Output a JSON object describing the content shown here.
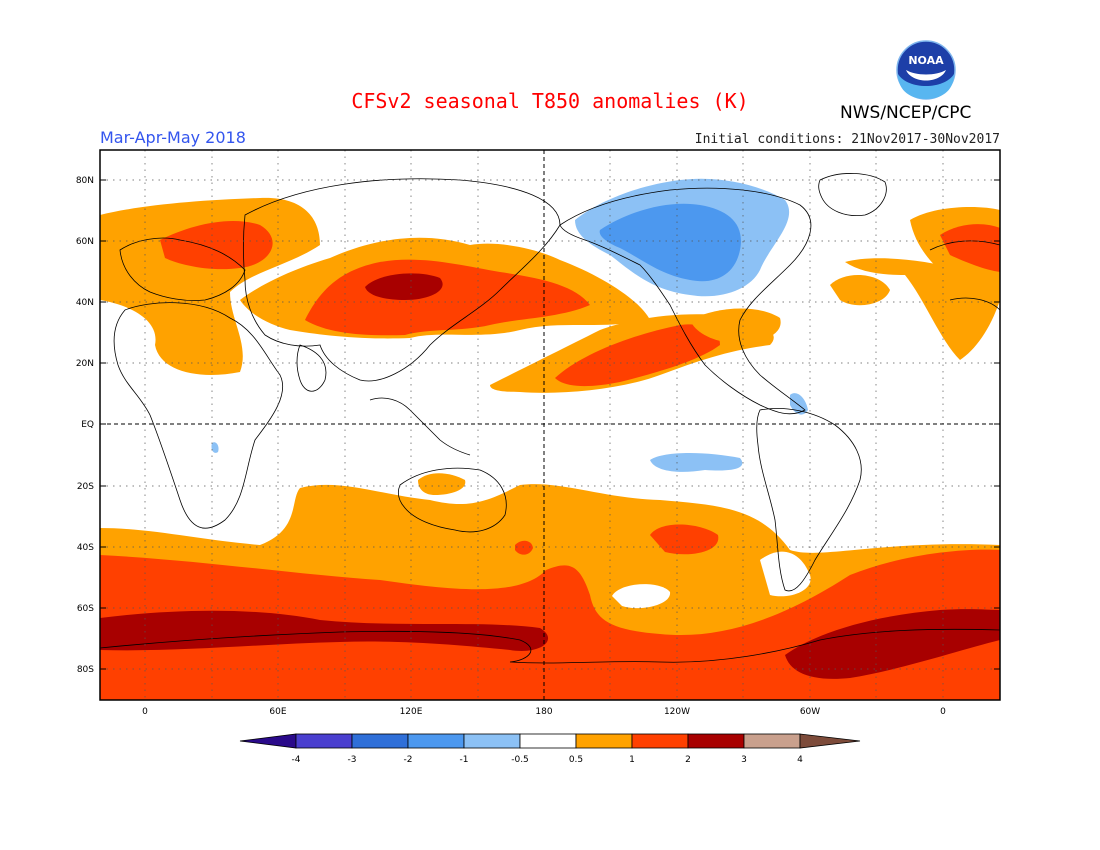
{
  "header": {
    "title": "CFSv2 seasonal T850 anomalies (K)",
    "season": "Mar-Apr-May 2018",
    "initial_conditions": "Initial conditions: 21Nov2017-30Nov2017",
    "agency": "NWS/NCEP/CPC",
    "logo_text": "NOAA"
  },
  "colors": {
    "title": "#ff0000",
    "season": "#3355ee",
    "ocean_neutral": "#ffffff",
    "coast": "#000000"
  },
  "map": {
    "lat_labels": [
      "80N",
      "60N",
      "40N",
      "20N",
      "EQ",
      "20S",
      "40S",
      "60S",
      "80S"
    ],
    "lon_labels": [
      "0",
      "60E",
      "120E",
      "180",
      "120W",
      "60W",
      "0"
    ]
  },
  "colorbar": {
    "ticks": [
      "-4",
      "-3",
      "-2",
      "-1",
      "-0.5",
      "0.5",
      "1",
      "2",
      "3",
      "4"
    ],
    "colors": [
      "#2a0a8a",
      "#4a3fcf",
      "#2f6fd8",
      "#4c98ef",
      "#8cc1f5",
      "#ffffff",
      "#ffa200",
      "#ff4000",
      "#a80000",
      "#c9a08d",
      "#7d4b3a"
    ]
  }
}
